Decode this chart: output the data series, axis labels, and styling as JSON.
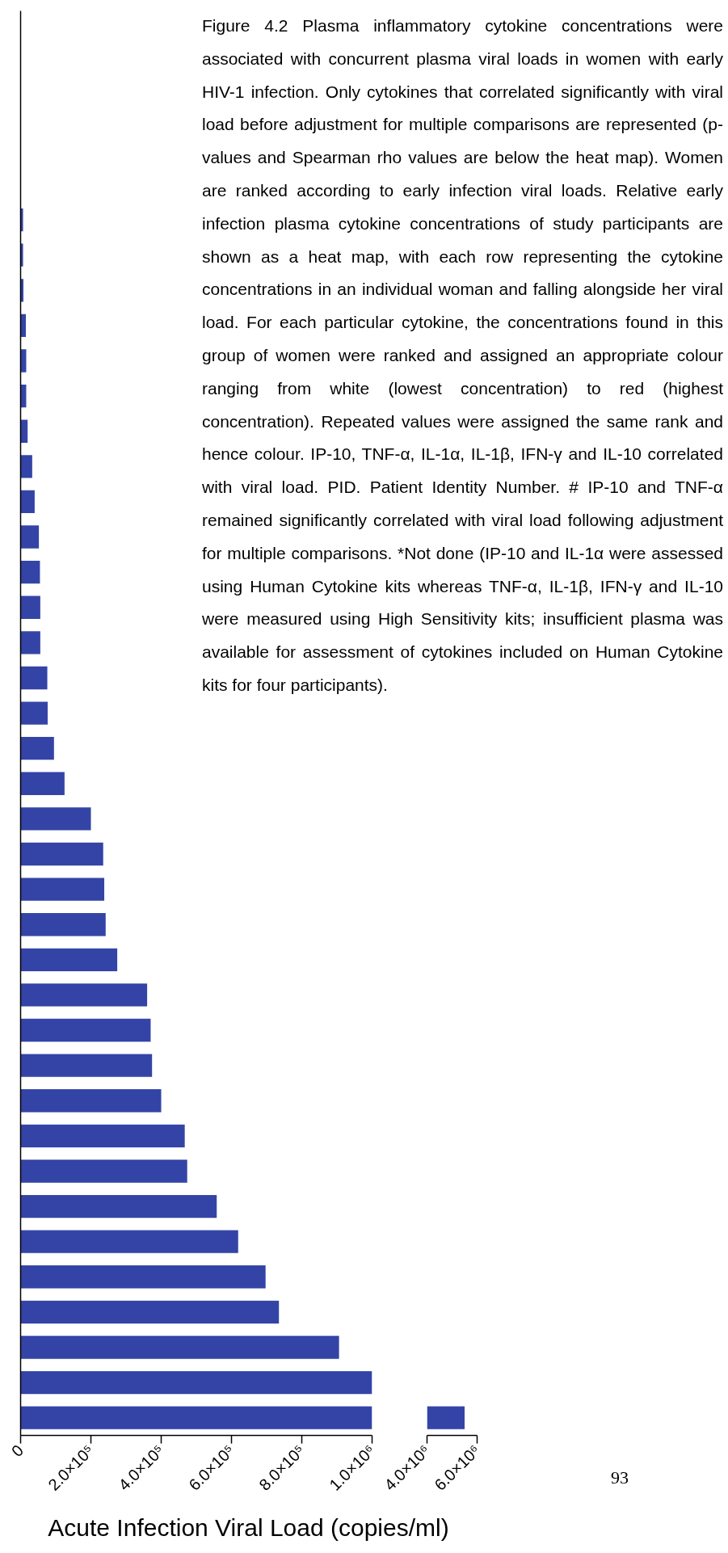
{
  "chart_data": [
    {
      "type": "bar",
      "orientation": "horizontal",
      "title": "Figure 4.2 Plasma inflammatory cytokine concentrations were associated with concurrent plasma viral loads in women with early HIV-1 infection. Only cytokines that correlated significantly with viral load before adjustment for multiple comparisons are represented (p-values and Spearman rho values are below the heat map). Women are ranked according to early infection viral loads. Relative early infection plasma cytokine concentrations of study participants are shown as a heat map, with each row representing the cytokine concentrations in an individual woman and falling alongside her viral load. For each particular cytokine, the concentrations found in this group of women were ranked and assigned an appropriate colour ranging from white (lowest concentration) to red (highest concentration). Repeated values were assigned the same rank and hence colour. IP-10, TNF-α, IL-1α, IL-1β, IFN-γ and IL-10 correlated with viral load. PID. Patient Identity Number. # IP-10 and TNF-α remained significantly correlated with viral load following adjustment for multiple comparisons. *Not done (IP-10 and IL-1α were assessed using Human Cytokine kits whereas TNF-α, IL-1β, IFN-γ and IL-10 were measured using High Sensitivity kits; insufficient plasma was available for assessment of cytokines included on Human Cytokine kits for four participants).",
      "xlabel": "Acute Infection Viral Load (copies/ml)",
      "annotations": [
        "93"
      ],
      "categories": [
        null,
        null,
        null,
        null,
        null,
        null,
        null,
        null,
        null,
        null,
        null,
        null,
        null,
        null,
        null,
        null,
        null,
        null,
        null,
        null,
        null,
        null,
        null,
        null,
        null,
        null,
        null,
        null,
        null,
        null,
        null,
        null,
        null,
        null,
        null,
        null,
        null,
        null,
        null,
        null
      ],
      "values": [
        null,
        null,
        null,
        null,
        null,
        7000,
        7000,
        8000,
        15000,
        16000,
        16000,
        20000,
        33000,
        40000,
        52000,
        55000,
        56000,
        56000,
        76000,
        77000,
        95000,
        125000,
        200000,
        235000,
        238000,
        242000,
        275000,
        360000,
        370000,
        374000,
        400000,
        467000,
        474000,
        558000,
        619000,
        697000,
        735000,
        906000,
        1000000,
        1000000
      ],
      "color": "#3444a6",
      "xlim": [
        0,
        1000000
      ],
      "xticks": [
        0,
        {
          "value": 200000,
          "label": "2.0×10⁵"
        },
        {
          "value": 400000,
          "label": "4.0×10⁵"
        },
        {
          "value": 600000,
          "label": "6.0×10⁵"
        },
        {
          "value": 800000,
          "label": "8.0×10⁵"
        },
        {
          "value": 1000000,
          "label": "1.0×10⁶"
        }
      ]
    },
    {
      "type": "bar",
      "orientation": "horizontal",
      "categories": [
        null,
        null,
        null,
        null,
        null,
        null,
        null,
        null,
        null,
        null,
        null,
        null,
        null,
        null,
        null,
        null,
        null,
        null,
        null,
        null,
        null,
        null,
        null,
        null,
        null,
        null,
        null,
        null,
        null,
        null,
        null,
        null,
        null,
        null,
        null,
        null,
        null,
        null,
        null,
        null
      ],
      "values": [
        null,
        null,
        null,
        null,
        null,
        null,
        null,
        null,
        null,
        null,
        null,
        null,
        null,
        null,
        null,
        null,
        null,
        null,
        null,
        null,
        null,
        null,
        null,
        null,
        null,
        null,
        null,
        null,
        null,
        null,
        null,
        null,
        null,
        null,
        null,
        null,
        null,
        null,
        null,
        5500000
      ],
      "color": "#3444a6",
      "xlim": [
        4000000,
        6000000
      ],
      "xticks": [
        {
          "value": 4000000,
          "label": "4.0×10⁶"
        },
        {
          "value": 6000000,
          "label": "6.0×10⁶"
        }
      ]
    }
  ]
}
